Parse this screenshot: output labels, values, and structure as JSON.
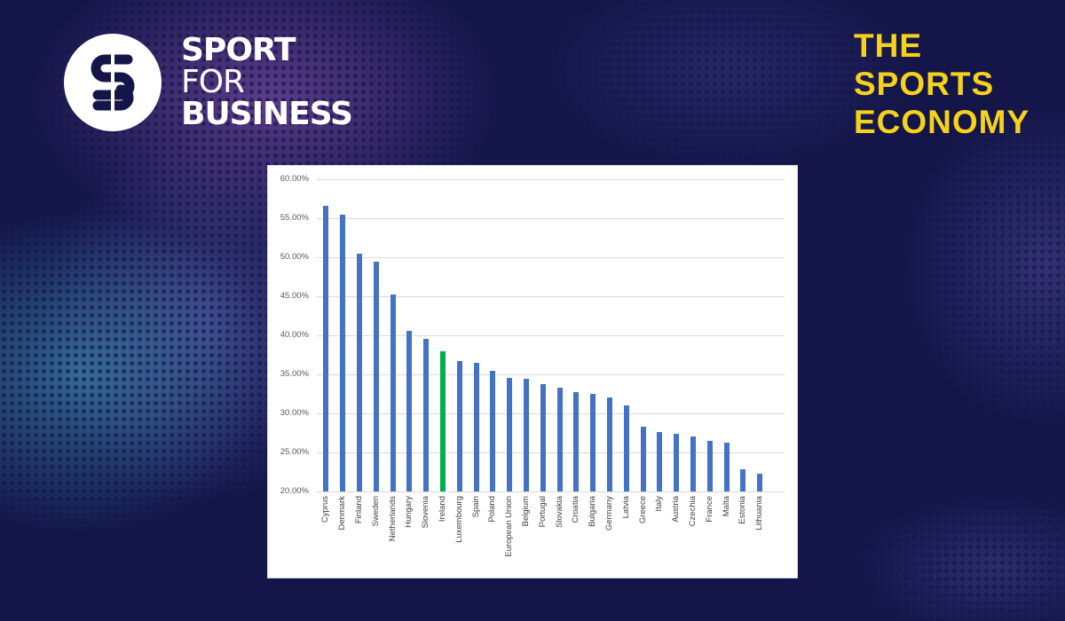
{
  "brand": {
    "logo_line1": "SPORT",
    "logo_line2": "FOR",
    "logo_line3": "BUSINESS",
    "logo_icon": "sb-monogram-icon"
  },
  "headline": {
    "line1": "THE",
    "line2": "SPORTS",
    "line3": "ECONOMY",
    "color": "#f6d21a"
  },
  "colors": {
    "background": "#14164a",
    "bar": "#4472c4",
    "highlight_bar": "#00b050",
    "gridline": "#d9d9d9"
  },
  "chart_data": {
    "type": "bar",
    "title": "",
    "xlabel": "",
    "ylabel": "",
    "ylim": [
      0.2,
      0.6
    ],
    "grid": true,
    "legend": "none",
    "yticks": [
      "60.00%",
      "55.00%",
      "50.00%",
      "45.00%",
      "40.00%",
      "35.00%",
      "30.00%",
      "25.00%",
      "20.00%"
    ],
    "categories": [
      "Cyprus",
      "Denmark",
      "Finland",
      "Sweden",
      "Netherlands",
      "Hungary",
      "Slovenia",
      "Ireland",
      "Luxembourg",
      "Spain",
      "Poland",
      "European Union",
      "Belgium",
      "Portugal",
      "Slovakia",
      "Croatia",
      "Bulgaria",
      "Germany",
      "Latvia",
      "Greece",
      "Italy",
      "Austria",
      "Czechia",
      "France",
      "Malta",
      "Estonia",
      "Lithuania"
    ],
    "values": [
      56.6,
      55.4,
      50.4,
      49.4,
      45.2,
      40.6,
      39.5,
      38.0,
      36.7,
      36.5,
      35.4,
      34.5,
      34.4,
      33.8,
      33.3,
      32.7,
      32.5,
      32.0,
      31.0,
      28.3,
      27.6,
      27.4,
      27.1,
      26.5,
      26.2,
      22.8,
      22.3
    ],
    "value_unit": "%",
    "highlighted": "Ireland"
  }
}
